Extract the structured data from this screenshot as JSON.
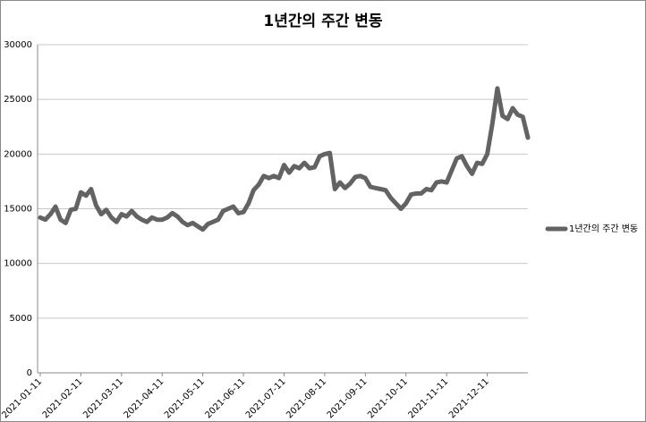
{
  "chart_data": {
    "type": "line",
    "title": "1년간의 주간 변동",
    "categories": [
      "2021-01-11",
      null,
      null,
      null,
      null,
      null,
      null,
      null,
      "2021-02-11",
      null,
      null,
      null,
      null,
      null,
      null,
      null,
      "2021-03-11",
      null,
      null,
      null,
      null,
      null,
      null,
      null,
      "2021-04-11",
      null,
      null,
      null,
      null,
      null,
      null,
      null,
      "2021-05-11",
      null,
      null,
      null,
      null,
      null,
      null,
      null,
      "2021-06-11",
      null,
      null,
      null,
      null,
      null,
      null,
      null,
      "2021-07-11",
      null,
      null,
      null,
      null,
      null,
      null,
      null,
      "2021-08-11",
      null,
      null,
      null,
      null,
      null,
      null,
      null,
      "2021-09-11",
      null,
      null,
      null,
      null,
      null,
      null,
      null,
      "2021-10-11",
      null,
      null,
      null,
      null,
      null,
      null,
      null,
      "2021-11-11",
      null,
      null,
      null,
      null,
      null,
      null,
      null,
      "2021-12-11",
      null,
      null,
      null,
      null,
      null,
      null,
      null,
      null
    ],
    "series": [
      {
        "name": "1년간의 주간 변동",
        "color": "#636363",
        "values": [
          14200,
          14000,
          14500,
          15200,
          14000,
          13700,
          14900,
          15000,
          16500,
          16200,
          16800,
          15300,
          14500,
          14900,
          14200,
          13800,
          14500,
          14300,
          14800,
          14300,
          14000,
          13800,
          14200,
          14000,
          14000,
          14200,
          14600,
          14300,
          13800,
          13500,
          13700,
          13400,
          13100,
          13600,
          13800,
          14000,
          14800,
          15000,
          15200,
          14600,
          14700,
          15500,
          16700,
          17200,
          18000,
          17800,
          18000,
          17800,
          19000,
          18300,
          18900,
          18700,
          19200,
          18700,
          18800,
          19800,
          20000,
          20100,
          16800,
          17400,
          16900,
          17300,
          17900,
          18000,
          17800,
          17000,
          16900,
          16800,
          16700,
          16000,
          15500,
          15000,
          15500,
          16300,
          16400,
          16400,
          16800,
          16700,
          17400,
          17500,
          17400,
          18500,
          19600,
          19800,
          18900,
          18200,
          19200,
          19100,
          20000,
          22800,
          26000,
          23500,
          23200,
          24200,
          23600,
          23400,
          21500
        ]
      }
    ],
    "ylim": [
      0,
      30000
    ],
    "yticks": [
      0,
      5000,
      10000,
      15000,
      20000,
      25000,
      30000
    ],
    "grid": true,
    "legend": "right"
  }
}
